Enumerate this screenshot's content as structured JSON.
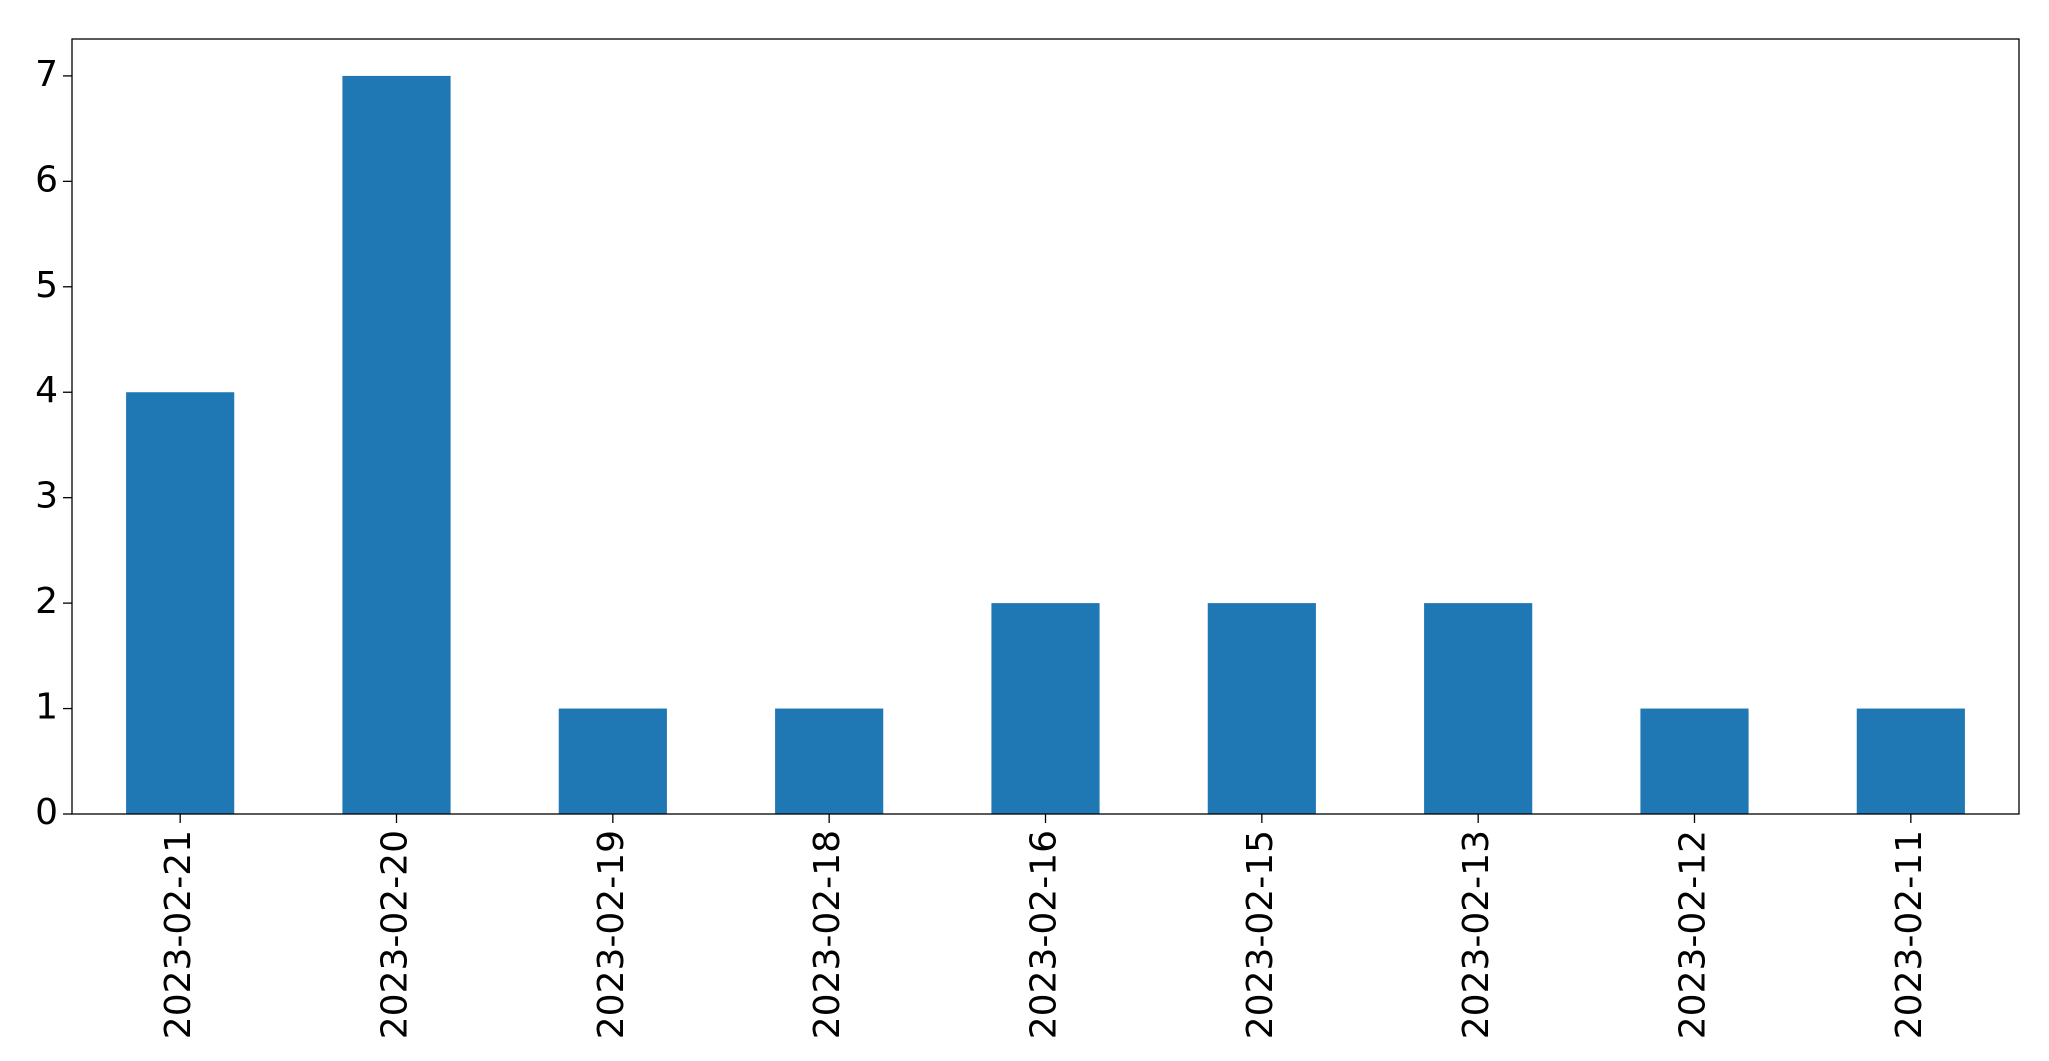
{
  "chart_data": {
    "type": "bar",
    "categories": [
      "2023-02-21",
      "2023-02-20",
      "2023-02-19",
      "2023-02-18",
      "2023-02-16",
      "2023-02-15",
      "2023-02-13",
      "2023-02-12",
      "2023-02-11"
    ],
    "values": [
      4,
      7,
      1,
      1,
      2,
      2,
      2,
      1,
      1
    ],
    "color": "#1f77b4",
    "ylim": [
      0,
      7.35
    ],
    "yticks": [
      0,
      1,
      2,
      3,
      4,
      5,
      6,
      7
    ],
    "grid": false
  }
}
